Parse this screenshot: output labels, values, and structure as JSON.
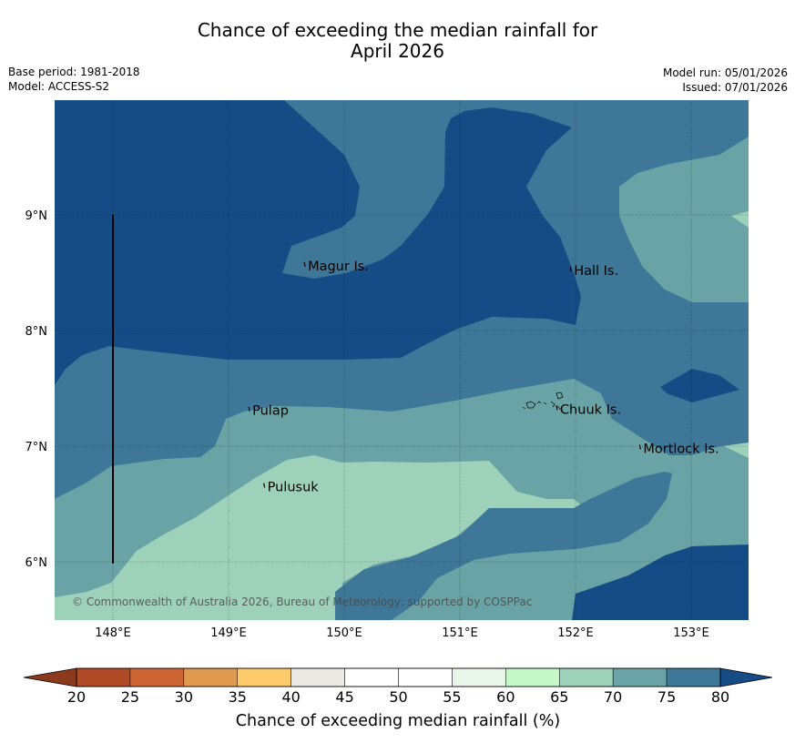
{
  "title": {
    "line1": "Chance of exceeding the median rainfall for",
    "line2": "April 2026"
  },
  "meta": {
    "base_period": "Base period: 1981-2018",
    "model": "Model: ACCESS-S2",
    "model_run": "Model run: 05/01/2026",
    "issued": "Issued: 07/01/2026"
  },
  "map": {
    "x_ticks": [
      {
        "lon": 148,
        "label": "148°E"
      },
      {
        "lon": 149,
        "label": "149°E"
      },
      {
        "lon": 150,
        "label": "150°E"
      },
      {
        "lon": 151,
        "label": "151°E"
      },
      {
        "lon": 152,
        "label": "152°E"
      },
      {
        "lon": 153,
        "label": "153°E"
      }
    ],
    "y_ticks": [
      {
        "lat": 9,
        "label": "9°N"
      },
      {
        "lat": 8,
        "label": "8°N"
      },
      {
        "lat": 7,
        "label": "7°N"
      },
      {
        "lat": 6,
        "label": "6°N"
      }
    ],
    "places": [
      {
        "name": "Magur Is.",
        "lon": 149.67,
        "lat": 8.56
      },
      {
        "name": "Hall Is.",
        "lon": 151.97,
        "lat": 8.52
      },
      {
        "name": "Pulap",
        "lon": 149.19,
        "lat": 7.31
      },
      {
        "name": "Chuuk Is.",
        "lon": 151.85,
        "lat": 7.32
      },
      {
        "name": "Mortlock Is.",
        "lon": 152.57,
        "lat": 6.98
      },
      {
        "name": "Pulusuk",
        "lon": 149.32,
        "lat": 6.65
      }
    ],
    "copyright": "© Commonwealth of Australia 2026, Bureau of Meteorology, supported by COSPPac"
  },
  "colorbar": {
    "label": "Chance of exceeding median rainfall (%)",
    "ticks": [
      "20",
      "25",
      "30",
      "35",
      "40",
      "45",
      "50",
      "55",
      "60",
      "65",
      "70",
      "75",
      "80"
    ],
    "colors": [
      "#b04926",
      "#cd6534",
      "#e09a4f",
      "#fcc96b",
      "#ece8e4",
      "#ffffff",
      "#ffffff",
      "#eaf5ea",
      "#c6f7c9",
      "#9dd1ba",
      "#6aa3a5",
      "#3e7798"
    ],
    "under_color": "#8c3a1e",
    "over_color": "#154c86"
  },
  "legend_colors": {
    "c80": "#154c86",
    "c75": "#3e7798",
    "c70": "#6aa3a5",
    "c65": "#9dd1ba",
    "c60": "#c6f7c9"
  }
}
